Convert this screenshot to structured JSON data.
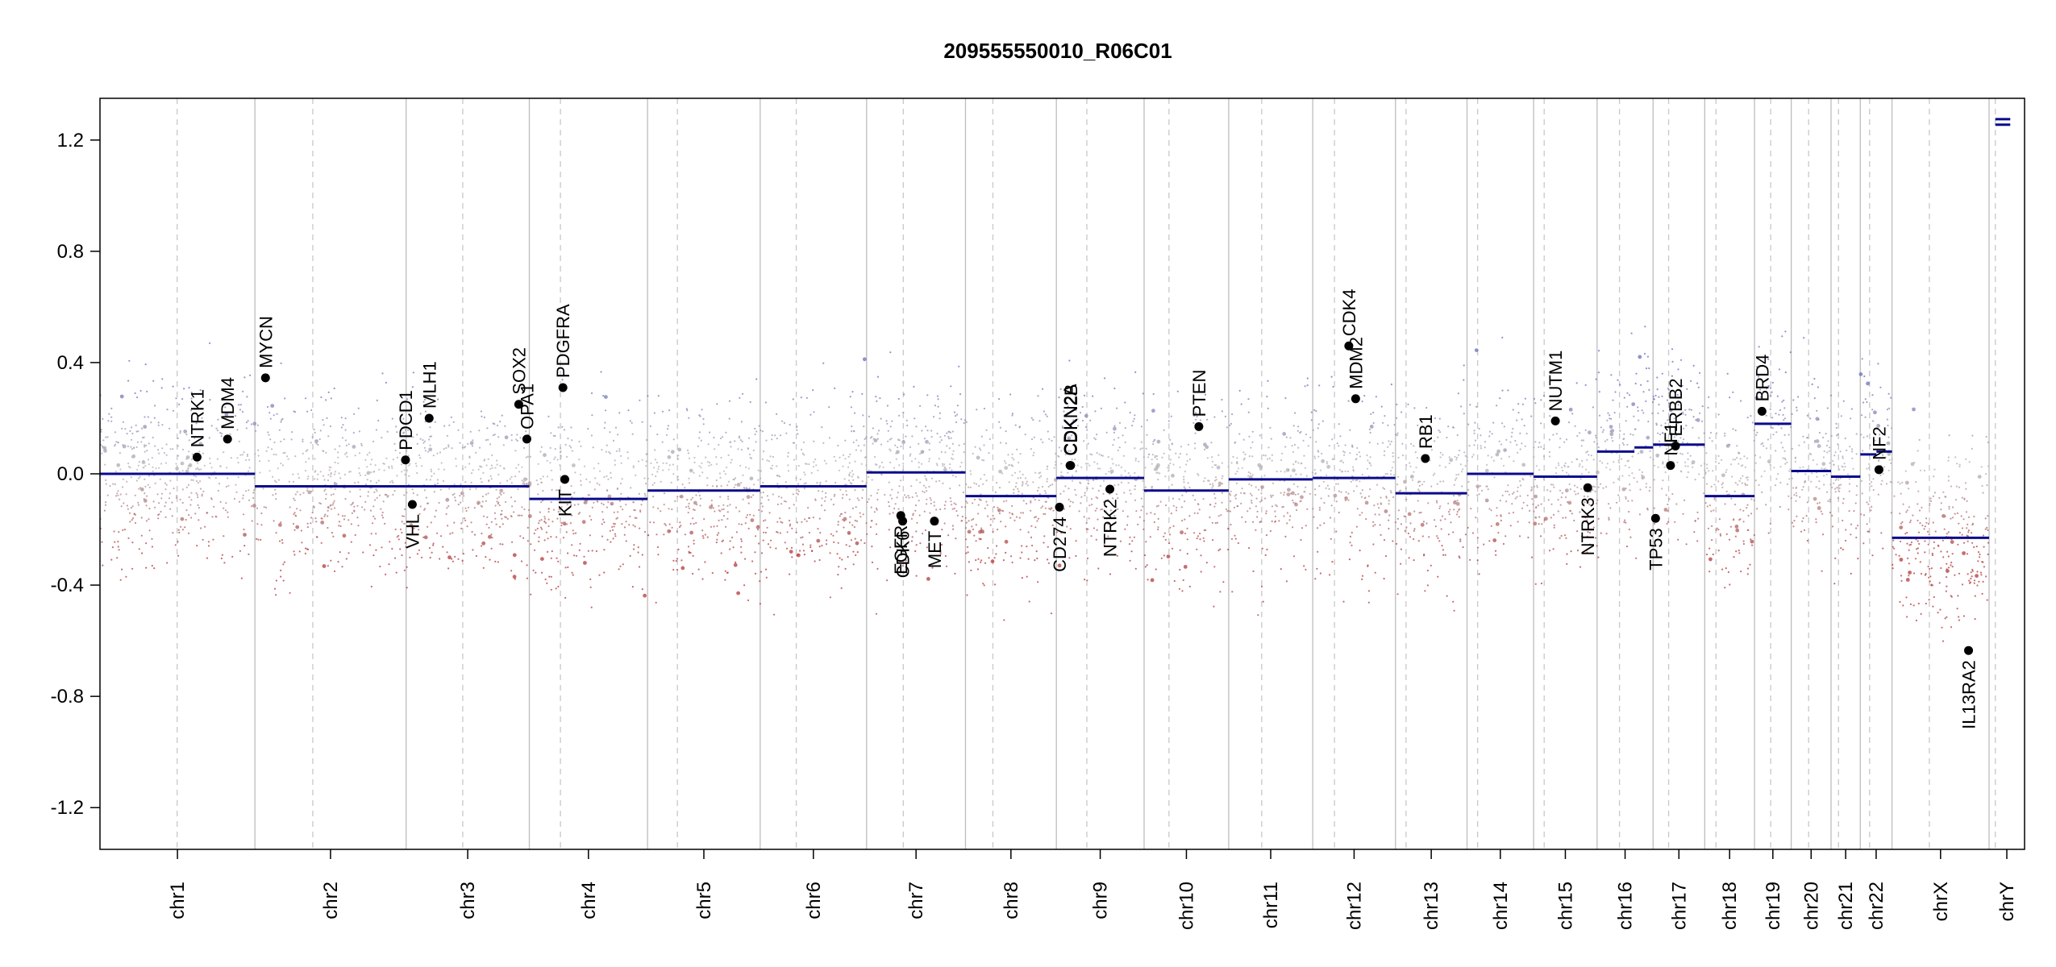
{
  "chart_data": {
    "type": "scatter",
    "title": "209555550010_R06C01",
    "xlabel": "",
    "ylabel": "",
    "ylim": [
      -1.35,
      1.35
    ],
    "y_ticks": [
      -1.2,
      -0.8,
      -0.4,
      0.0,
      0.4,
      0.8,
      1.2
    ],
    "y_tick_labels": [
      "-1.2",
      "-0.8",
      "-0.4",
      "0.0",
      "0.4",
      "0.8",
      "1.2"
    ],
    "grid": false,
    "legend": "none",
    "colors": {
      "gain_points": "#6a6fb8",
      "loss_points": "#b33a3a",
      "neutral_points": "#b5b5b5",
      "segments": "#0a0a8c",
      "gene_points": "#000000",
      "chromosome_boundary": "#bdbdbd",
      "centromere": "#c8c8c8",
      "frame": "#000000"
    },
    "chromosomes": [
      {
        "name": "chr1",
        "x_start": 0,
        "x_end": 249,
        "centromere": 124,
        "label": "chr1"
      },
      {
        "name": "chr2",
        "x_start": 249,
        "x_end": 492,
        "centromere": 342,
        "label": "chr2"
      },
      {
        "name": "chr3",
        "x_start": 492,
        "x_end": 690,
        "centromere": 583,
        "label": "chr3"
      },
      {
        "name": "chr4",
        "x_start": 690,
        "x_end": 880,
        "centromere": 740,
        "label": "chr4"
      },
      {
        "name": "chr5",
        "x_start": 880,
        "x_end": 1061,
        "centromere": 928,
        "label": "chr5"
      },
      {
        "name": "chr6",
        "x_start": 1061,
        "x_end": 1232,
        "centromere": 1119,
        "label": "chr6"
      },
      {
        "name": "chr7",
        "x_start": 1232,
        "x_end": 1391,
        "centromere": 1291,
        "label": "chr7"
      },
      {
        "name": "chr8",
        "x_start": 1391,
        "x_end": 1537,
        "centromere": 1435,
        "label": "chr8"
      },
      {
        "name": "chr9",
        "x_start": 1537,
        "x_end": 1678,
        "centromere": 1586,
        "label": "chr9"
      },
      {
        "name": "chr10",
        "x_start": 1678,
        "x_end": 1814,
        "centromere": 1718,
        "label": "chr10"
      },
      {
        "name": "chr11",
        "x_start": 1814,
        "x_end": 1949,
        "centromere": 1867,
        "label": "chr11"
      },
      {
        "name": "chr12",
        "x_start": 1949,
        "x_end": 2082,
        "centromere": 1984,
        "label": "chr12"
      },
      {
        "name": "chr13",
        "x_start": 2082,
        "x_end": 2197,
        "centromere": 2099,
        "label": "chr13"
      },
      {
        "name": "chr14",
        "x_start": 2197,
        "x_end": 2304,
        "centromere": 2214,
        "label": "chr14"
      },
      {
        "name": "chr15",
        "x_start": 2304,
        "x_end": 2406,
        "centromere": 2321,
        "label": "chr15"
      },
      {
        "name": "chr16",
        "x_start": 2406,
        "x_end": 2496,
        "centromere": 2442,
        "label": "chr16"
      },
      {
        "name": "chr17",
        "x_start": 2496,
        "x_end": 2579,
        "centromere": 2521,
        "label": "chr17"
      },
      {
        "name": "chr18",
        "x_start": 2579,
        "x_end": 2659,
        "centromere": 2597,
        "label": "chr18"
      },
      {
        "name": "chr19",
        "x_start": 2659,
        "x_end": 2718,
        "centromere": 2685,
        "label": "chr19"
      },
      {
        "name": "chr20",
        "x_start": 2718,
        "x_end": 2782,
        "centromere": 2746,
        "label": "chr20"
      },
      {
        "name": "chr21",
        "x_start": 2782,
        "x_end": 2829,
        "centromere": 2794,
        "label": "chr21"
      },
      {
        "name": "chr22",
        "x_start": 2829,
        "x_end": 2880,
        "centromere": 2844,
        "label": "chr22"
      },
      {
        "name": "chrX",
        "x_start": 2880,
        "x_end": 3036,
        "centromere": 2940,
        "label": "chrX"
      },
      {
        "name": "chrY",
        "x_start": 3036,
        "x_end": 3093,
        "centromere": 3046,
        "label": "chrY"
      }
    ],
    "segments": [
      {
        "x_start": 0,
        "x_end": 249,
        "y": 0.0
      },
      {
        "x_start": 249,
        "x_end": 492,
        "y": -0.045
      },
      {
        "x_start": 492,
        "x_end": 690,
        "y": -0.045
      },
      {
        "x_start": 690,
        "x_end": 880,
        "y": -0.09
      },
      {
        "x_start": 880,
        "x_end": 1061,
        "y": -0.06
      },
      {
        "x_start": 1061,
        "x_end": 1232,
        "y": -0.045
      },
      {
        "x_start": 1232,
        "x_end": 1391,
        "y": 0.005
      },
      {
        "x_start": 1391,
        "x_end": 1537,
        "y": -0.08
      },
      {
        "x_start": 1537,
        "x_end": 1678,
        "y": -0.015
      },
      {
        "x_start": 1678,
        "x_end": 1814,
        "y": -0.06
      },
      {
        "x_start": 1814,
        "x_end": 1949,
        "y": -0.02
      },
      {
        "x_start": 1949,
        "x_end": 2082,
        "y": -0.015
      },
      {
        "x_start": 2082,
        "x_end": 2197,
        "y": -0.07
      },
      {
        "x_start": 2197,
        "x_end": 2304,
        "y": 0.0
      },
      {
        "x_start": 2304,
        "x_end": 2406,
        "y": -0.01
      },
      {
        "x_start": 2406,
        "x_end": 2466,
        "y": 0.08
      },
      {
        "x_start": 2466,
        "x_end": 2496,
        "y": 0.095
      },
      {
        "x_start": 2496,
        "x_end": 2579,
        "y": 0.105
      },
      {
        "x_start": 2579,
        "x_end": 2659,
        "y": -0.08
      },
      {
        "x_start": 2659,
        "x_end": 2718,
        "y": 0.18
      },
      {
        "x_start": 2718,
        "x_end": 2782,
        "y": 0.01
      },
      {
        "x_start": 2782,
        "x_end": 2829,
        "y": -0.01
      },
      {
        "x_start": 2829,
        "x_end": 2855,
        "y": 0.07
      },
      {
        "x_start": 2855,
        "x_end": 2880,
        "y": 0.08
      },
      {
        "x_start": 2880,
        "x_end": 3036,
        "y": -0.23
      },
      {
        "x_start": 3046,
        "x_end": 3070,
        "y": 1.255
      },
      {
        "x_start": 3046,
        "x_end": 3070,
        "y": 1.275
      }
    ],
    "genes": [
      {
        "name": "NTRK1",
        "x": 156,
        "y": 0.06,
        "label_side": "above"
      },
      {
        "name": "MDM4",
        "x": 205,
        "y": 0.125,
        "label_side": "above"
      },
      {
        "name": "MYCN",
        "x": 266,
        "y": 0.345,
        "label_side": "above"
      },
      {
        "name": "PDCD1",
        "x": 491,
        "y": 0.05,
        "label_side": "above"
      },
      {
        "name": "VHL",
        "x": 502,
        "y": -0.11,
        "label_side": "below"
      },
      {
        "name": "MLH1",
        "x": 529,
        "y": 0.2,
        "label_side": "above"
      },
      {
        "name": "SOX2",
        "x": 673,
        "y": 0.25,
        "label_side": "above"
      },
      {
        "name": "OPA1",
        "x": 686,
        "y": 0.125,
        "label_side": "above"
      },
      {
        "name": "PDGFRA",
        "x": 744,
        "y": 0.31,
        "label_side": "above"
      },
      {
        "name": "KIT",
        "x": 747,
        "y": -0.02,
        "label_side": "below"
      },
      {
        "name": "EGFR",
        "x": 1287,
        "y": -0.15,
        "label_side": "below"
      },
      {
        "name": "CDK6",
        "x": 1290,
        "y": -0.17,
        "label_side": "below"
      },
      {
        "name": "MET",
        "x": 1341,
        "y": -0.17,
        "label_side": "below"
      },
      {
        "name": "CD274",
        "x": 1542,
        "y": -0.12,
        "label_side": "below"
      },
      {
        "name": "CDKN2A",
        "x": 1559,
        "y": 0.03,
        "label_side": "above"
      },
      {
        "name": "CDKN2B",
        "x": 1560,
        "y": 0.03,
        "label_side": "above"
      },
      {
        "name": "NTRK2",
        "x": 1623,
        "y": -0.055,
        "label_side": "below"
      },
      {
        "name": "PTEN",
        "x": 1766,
        "y": 0.17,
        "label_side": "above"
      },
      {
        "name": "CDK4",
        "x": 2007,
        "y": 0.46,
        "label_side": "above"
      },
      {
        "name": "MDM2",
        "x": 2018,
        "y": 0.27,
        "label_side": "above"
      },
      {
        "name": "RB1",
        "x": 2130,
        "y": 0.055,
        "label_side": "above"
      },
      {
        "name": "NUTM1",
        "x": 2339,
        "y": 0.19,
        "label_side": "above"
      },
      {
        "name": "NTRK3",
        "x": 2391,
        "y": -0.05,
        "label_side": "below"
      },
      {
        "name": "TP53",
        "x": 2500,
        "y": -0.16,
        "label_side": "below"
      },
      {
        "name": "NF1",
        "x": 2524,
        "y": 0.03,
        "label_side": "above"
      },
      {
        "name": "ERBB2",
        "x": 2532,
        "y": 0.1,
        "label_side": "above"
      },
      {
        "name": "BRD4",
        "x": 2671,
        "y": 0.225,
        "label_side": "above"
      },
      {
        "name": "NF2",
        "x": 2859,
        "y": 0.015,
        "label_side": "above"
      },
      {
        "name": "IL13RA2",
        "x": 3003,
        "y": -0.635,
        "label_side": "below"
      }
    ]
  }
}
